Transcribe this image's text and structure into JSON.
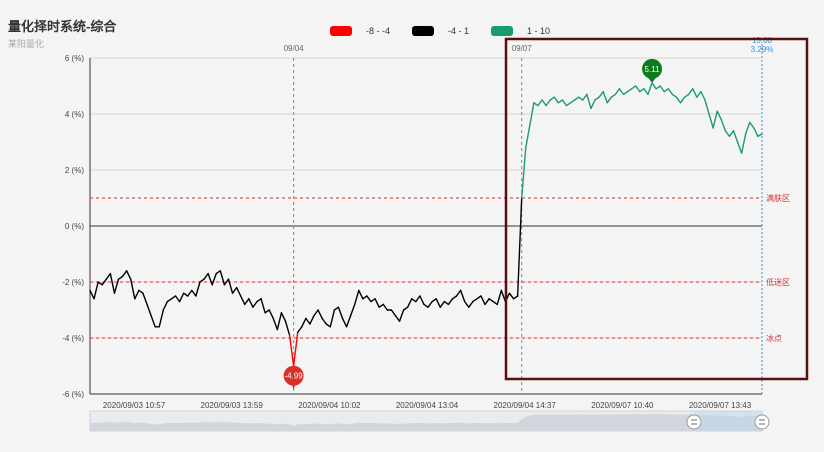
{
  "title": "量化择时系统-综合",
  "subtitle": "某阳量化",
  "legend": [
    {
      "label": "-8 - -4",
      "color": "#ff0000"
    },
    {
      "label": "-4 - 1",
      "color": "#000000"
    },
    {
      "label": "1 - 10",
      "color": "#1a9c6e"
    }
  ],
  "chart_data": {
    "type": "line",
    "y_ticks": [
      "6 (%)",
      "4 (%)",
      "2 (%)",
      "0 (%)",
      "-2 (%)",
      "-4 (%)",
      "-6 (%)"
    ],
    "y_values": [
      6,
      4,
      2,
      0,
      -2,
      -4,
      -6
    ],
    "ylim": [
      -6,
      6
    ],
    "x_ticks": [
      "2020/09/03 10:57",
      "2020/09/03 13:59",
      "2020/09/04 10:02",
      "2020/09/04 13:04",
      "2020/09/04 14:37",
      "2020/09/07 10:40",
      "2020/09/07 13:43"
    ],
    "day_markers": [
      "09/04",
      "09/07"
    ],
    "cursor": {
      "label": "15:00",
      "value_label": "3.29%",
      "value": 3.29
    },
    "mark_lines": [
      {
        "label": "满肤区",
        "value": 1
      },
      {
        "label": "低迷区",
        "value": -2
      },
      {
        "label": "冰点",
        "value": -4
      }
    ],
    "mark_points": [
      {
        "label": "5.11",
        "value": 5.11,
        "color": "#0b7d1d"
      },
      {
        "label": "-4.99",
        "value": -4.99,
        "color": "#d9302c"
      }
    ],
    "series": [
      {
        "color_ranges": [
          {
            "min": -8,
            "max": -4,
            "color": "#ff0000"
          },
          {
            "min": -4,
            "max": 1,
            "color": "#000000"
          },
          {
            "min": 1,
            "max": 10,
            "color": "#1a9c6e"
          }
        ],
        "values": [
          -2.3,
          -2.6,
          -2.0,
          -2.1,
          -1.9,
          -1.7,
          -2.4,
          -1.9,
          -1.8,
          -1.6,
          -1.9,
          -2.6,
          -2.3,
          -2.4,
          -2.8,
          -3.2,
          -3.6,
          -3.6,
          -3.0,
          -2.7,
          -2.6,
          -2.5,
          -2.7,
          -2.4,
          -2.5,
          -2.3,
          -2.5,
          -2.0,
          -1.9,
          -1.7,
          -2.1,
          -1.7,
          -1.6,
          -2.1,
          -1.9,
          -2.4,
          -2.2,
          -2.5,
          -2.8,
          -2.6,
          -2.9,
          -2.7,
          -2.6,
          -3.1,
          -3.0,
          -3.3,
          -3.7,
          -3.1,
          -3.4,
          -3.9,
          -4.99,
          -3.8,
          -3.6,
          -3.3,
          -3.5,
          -3.2,
          -3.0,
          -3.3,
          -3.5,
          -3.6,
          -3.0,
          -2.9,
          -3.3,
          -3.6,
          -3.2,
          -2.8,
          -2.3,
          -2.6,
          -2.5,
          -2.7,
          -2.6,
          -2.9,
          -2.8,
          -3.0,
          -3.0,
          -3.2,
          -3.4,
          -3.0,
          -2.9,
          -2.6,
          -2.7,
          -2.5,
          -2.8,
          -2.9,
          -2.7,
          -2.6,
          -2.9,
          -2.7,
          -2.8,
          -2.6,
          -2.5,
          -2.3,
          -2.7,
          -2.9,
          -2.7,
          -2.6,
          -2.5,
          -2.8,
          -2.6,
          -2.7,
          -2.8,
          -2.3,
          -2.7,
          -2.4,
          -2.6,
          -2.5,
          1.0,
          2.8,
          3.6,
          4.4,
          4.3,
          4.5,
          4.3,
          4.5,
          4.6,
          4.4,
          4.5,
          4.3,
          4.4,
          4.5,
          4.6,
          4.5,
          4.7,
          4.2,
          4.5,
          4.6,
          4.8,
          4.4,
          4.6,
          4.7,
          4.9,
          4.7,
          4.8,
          4.9,
          5.0,
          4.8,
          4.9,
          4.7,
          5.11,
          4.9,
          5.0,
          4.8,
          4.9,
          4.7,
          4.6,
          4.4,
          4.6,
          4.7,
          4.9,
          4.6,
          4.8,
          4.5,
          4.0,
          3.5,
          4.1,
          3.8,
          3.4,
          3.2,
          3.4,
          3.0,
          2.6,
          3.3,
          3.7,
          3.5,
          3.2,
          3.29
        ]
      }
    ]
  }
}
